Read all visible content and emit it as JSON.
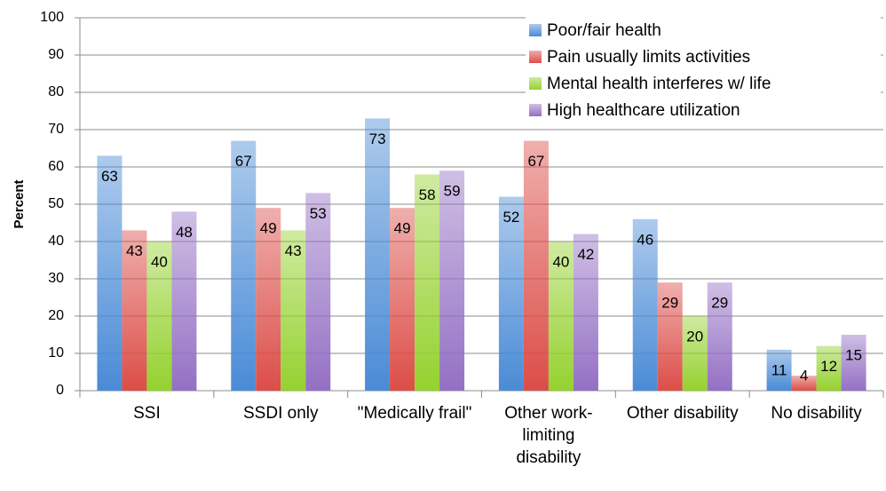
{
  "chart_data": {
    "type": "bar",
    "ylabel": "Percent",
    "categories": [
      "SSI",
      "SSDI only",
      "\"Medically frail\"",
      "Other work-limiting disability",
      "Other disability",
      "No disability"
    ],
    "series": [
      {
        "name": "Poor/fair health",
        "color": "#4a8bd6",
        "values": [
          63,
          67,
          73,
          52,
          46,
          11
        ]
      },
      {
        "name": "Pain usually limits activities",
        "color": "#dc4d48",
        "values": [
          43,
          49,
          49,
          67,
          29,
          4
        ]
      },
      {
        "name": "Mental health interferes w/ life",
        "color": "#95d12f",
        "values": [
          40,
          43,
          58,
          40,
          20,
          12
        ]
      },
      {
        "name": "High healthcare utilization",
        "color": "#9470c4",
        "values": [
          48,
          53,
          59,
          42,
          29,
          15
        ]
      }
    ],
    "ylim": [
      0,
      100
    ],
    "yticks": [
      0,
      10,
      20,
      30,
      40,
      50,
      60,
      70,
      80,
      90,
      100
    ],
    "grid": true,
    "legend": "top-right"
  }
}
